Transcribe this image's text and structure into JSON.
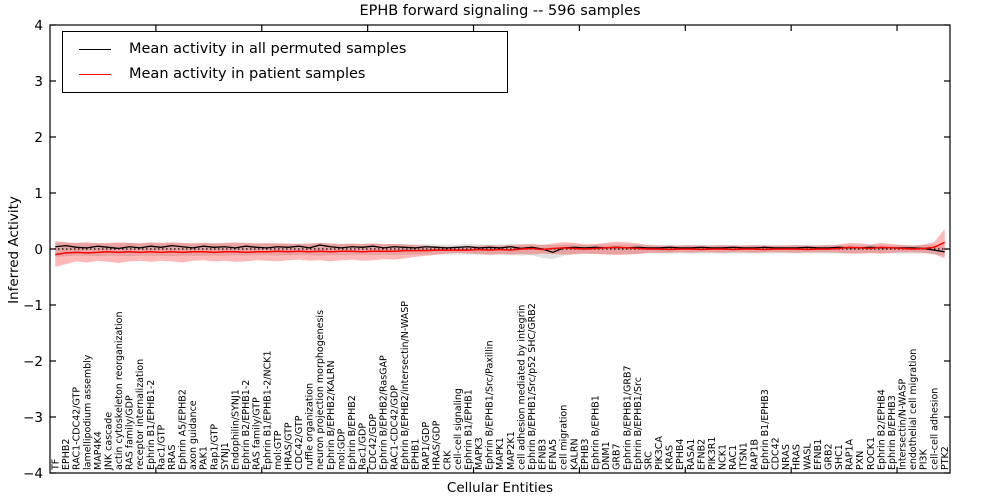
{
  "chart_data": {
    "type": "line",
    "title": "EPHB forward signaling -- 596 samples",
    "xlabel": "Cellular Entities",
    "ylabel": "Inferred Activity",
    "ylim": [
      -4,
      4
    ],
    "yticks": [
      -4,
      -3,
      -2,
      -1,
      0,
      1,
      2,
      3,
      4
    ],
    "grid": false,
    "legend_position": "upper left",
    "zero_line": {
      "y": 0,
      "style": "dotted",
      "color": "#000000"
    },
    "colors": {
      "permuted_line": "#000000",
      "permuted_band": "#c8c8c8",
      "patient_line": "#ff0000",
      "patient_band": "#ff0000",
      "background": "#ffffff"
    },
    "categories": [
      "TF",
      "EPHB2",
      "RAC1-CDC42/GTP",
      "lamellipodium assembly",
      "MAP4K4",
      "JNK cascade",
      "actin cytoskeleton reorganization",
      "RAS family/GDP",
      "receptor internalization",
      "Ephrin B1/EPHB1-2",
      "Rac1/GTP",
      "RRAS",
      "Ephrin A5/EPHB2",
      "axon guidance",
      "PAK1",
      "Rap1/GTP",
      "SYNJ1",
      "Endophilin/SYNJ1",
      "Ephrin B2/EPHB1-2",
      "RAS family/GTP",
      "Ephrin B1/EPHB1-2/NCK1",
      "mol:GTP",
      "HRAS/GTP",
      "CDC42/GTP",
      "ruffle organization",
      "neuron projection morphogenesis",
      "Ephrin B/EPHB2/KALRN",
      "mol:GDP",
      "Ephrin B/EPHB2",
      "Rac1/GDP",
      "CDC42/GDP",
      "Ephrin B/EPHB2/RasGAP",
      "RAC1-CDC42/GDP",
      "Ephrin B/EPHB2/intersectin/N-WASP",
      "EPHB1",
      "RAP1/GDP",
      "HRAS/GDP",
      "CRK",
      "cell-cell signaling",
      "Ephrin B1/EPHB1",
      "MAPK3",
      "Ephrin B/EPHB1/Src/Paxillin",
      "MAPK1",
      "MAP2K1",
      "cell adhesion mediated by integrin",
      "Ephrin B/EPHB1/Src/p52 SHC/GRB2",
      "EFNB3",
      "EFNA5",
      "cell migration",
      "KALRN",
      "EPHB3",
      "Ephrin B/EPHB1",
      "DNM1",
      "GRB7",
      "Ephrin B/EPHB1/GRB7",
      "Ephrin B/EPHB1/Src",
      "SRC",
      "PIK3CA",
      "KRAS",
      "EPHB4",
      "RASA1",
      "EFNB2",
      "PIK3R1",
      "NCK1",
      "RAC1",
      "ITSN1",
      "RAP1B",
      "Ephrin B1/EPHB3",
      "CDC42",
      "NRAS",
      "HRAS",
      "WASL",
      "EFNB1",
      "GRB2",
      "SHC1",
      "RAP1A",
      "PXN",
      "ROCK1",
      "Ephrin B2/EPHB4",
      "Ephrin B/EPHB3",
      "Intersectin/N-WASP",
      "endothelial cell migration",
      "PI3K",
      "cell-cell adhesion",
      "PTK2"
    ],
    "series": [
      {
        "name": "Mean activity in all permuted samples",
        "color": "#000000",
        "values": [
          0.04,
          0.06,
          0.03,
          0.02,
          0.05,
          0.03,
          0.01,
          0.04,
          0.02,
          0.05,
          0.03,
          0.06,
          0.04,
          0.02,
          0.05,
          0.03,
          0.04,
          0.02,
          0.05,
          0.03,
          0.02,
          0.04,
          0.03,
          0.05,
          0.02,
          0.07,
          0.04,
          0.02,
          0.04,
          0.03,
          0.05,
          0.02,
          0.04,
          0.03,
          0.02,
          0.04,
          0.03,
          0.02,
          0.03,
          0.04,
          0.02,
          0.03,
          0.02,
          0.04,
          0.01,
          0.03,
          0.0,
          -0.06,
          0.02,
          0.03,
          0.02,
          0.03,
          0.02,
          0.03,
          0.02,
          0.03,
          0.02,
          0.02,
          0.03,
          0.02,
          0.02,
          0.03,
          0.02,
          0.02,
          0.03,
          0.02,
          0.02,
          0.03,
          0.02,
          0.02,
          0.02,
          0.03,
          0.02,
          0.02,
          0.03,
          0.02,
          0.02,
          0.03,
          0.02,
          0.02,
          0.02,
          0.02,
          0.01,
          -0.02,
          -0.05
        ],
        "band_low": [
          -0.14,
          -0.13,
          -0.12,
          -0.12,
          -0.13,
          -0.12,
          -0.12,
          -0.13,
          -0.12,
          -0.12,
          -0.12,
          -0.13,
          -0.12,
          -0.12,
          -0.12,
          -0.12,
          -0.12,
          -0.11,
          -0.12,
          -0.11,
          -0.11,
          -0.12,
          -0.11,
          -0.11,
          -0.11,
          -0.12,
          -0.11,
          -0.11,
          -0.11,
          -0.1,
          -0.11,
          -0.1,
          -0.11,
          -0.1,
          -0.1,
          -0.1,
          -0.1,
          -0.1,
          -0.1,
          -0.1,
          -0.1,
          -0.11,
          -0.1,
          -0.1,
          -0.12,
          -0.11,
          -0.16,
          -0.18,
          -0.12,
          -0.1,
          -0.09,
          -0.09,
          -0.09,
          -0.09,
          -0.09,
          -0.09,
          -0.08,
          -0.08,
          -0.08,
          -0.08,
          -0.08,
          -0.08,
          -0.08,
          -0.08,
          -0.08,
          -0.08,
          -0.08,
          -0.08,
          -0.08,
          -0.08,
          -0.08,
          -0.08,
          -0.08,
          -0.08,
          -0.08,
          -0.08,
          -0.08,
          -0.08,
          -0.08,
          -0.08,
          -0.08,
          -0.08,
          -0.08,
          -0.1,
          -0.12
        ],
        "band_high": [
          0.12,
          0.11,
          0.11,
          0.1,
          0.11,
          0.1,
          0.1,
          0.11,
          0.1,
          0.11,
          0.1,
          0.11,
          0.1,
          0.1,
          0.11,
          0.1,
          0.1,
          0.1,
          0.1,
          0.1,
          0.09,
          0.1,
          0.09,
          0.1,
          0.09,
          0.11,
          0.09,
          0.09,
          0.09,
          0.09,
          0.1,
          0.09,
          0.09,
          0.09,
          0.08,
          0.09,
          0.08,
          0.08,
          0.08,
          0.09,
          0.08,
          0.08,
          0.08,
          0.09,
          0.08,
          0.08,
          0.08,
          0.07,
          0.08,
          0.08,
          0.08,
          0.08,
          0.08,
          0.08,
          0.08,
          0.08,
          0.07,
          0.07,
          0.07,
          0.07,
          0.07,
          0.07,
          0.07,
          0.07,
          0.07,
          0.07,
          0.07,
          0.07,
          0.07,
          0.07,
          0.07,
          0.07,
          0.07,
          0.07,
          0.07,
          0.07,
          0.07,
          0.07,
          0.07,
          0.07,
          0.07,
          0.07,
          0.07,
          0.08,
          0.08
        ]
      },
      {
        "name": "Mean activity in patient samples",
        "color": "#ff0000",
        "values": [
          -0.1,
          -0.07,
          -0.06,
          -0.07,
          -0.06,
          -0.05,
          -0.06,
          -0.05,
          -0.06,
          -0.05,
          -0.06,
          -0.05,
          -0.06,
          -0.05,
          -0.05,
          -0.06,
          -0.05,
          -0.05,
          -0.06,
          -0.05,
          -0.05,
          -0.04,
          -0.05,
          -0.04,
          -0.05,
          -0.04,
          -0.05,
          -0.04,
          -0.04,
          -0.05,
          -0.04,
          -0.04,
          -0.04,
          -0.03,
          -0.03,
          -0.03,
          -0.02,
          -0.02,
          -0.02,
          -0.02,
          -0.01,
          -0.02,
          -0.01,
          -0.02,
          0.0,
          0.01,
          -0.01,
          0.01,
          0.02,
          0.01,
          0.0,
          0.01,
          0.02,
          0.03,
          0.02,
          0.01,
          0.0,
          0.0,
          -0.01,
          0.0,
          0.0,
          -0.01,
          0.0,
          0.0,
          -0.01,
          0.0,
          0.0,
          -0.01,
          0.0,
          0.0,
          0.0,
          -0.01,
          0.0,
          0.0,
          0.01,
          0.03,
          0.02,
          0.01,
          0.03,
          0.02,
          0.01,
          0.0,
          0.01,
          0.03,
          0.12
        ],
        "band_low": [
          -0.32,
          -0.27,
          -0.22,
          -0.24,
          -0.21,
          -0.23,
          -0.25,
          -0.22,
          -0.21,
          -0.23,
          -0.21,
          -0.22,
          -0.24,
          -0.21,
          -0.2,
          -0.22,
          -0.21,
          -0.23,
          -0.22,
          -0.2,
          -0.21,
          -0.22,
          -0.2,
          -0.19,
          -0.21,
          -0.2,
          -0.22,
          -0.2,
          -0.19,
          -0.21,
          -0.2,
          -0.18,
          -0.19,
          -0.17,
          -0.14,
          -0.12,
          -0.1,
          -0.08,
          -0.07,
          -0.08,
          -0.09,
          -0.1,
          -0.09,
          -0.1,
          -0.09,
          -0.1,
          -0.08,
          -0.09,
          -0.1,
          -0.09,
          -0.08,
          -0.09,
          -0.1,
          -0.11,
          -0.1,
          -0.09,
          -0.07,
          -0.07,
          -0.07,
          -0.06,
          -0.07,
          -0.06,
          -0.06,
          -0.07,
          -0.06,
          -0.06,
          -0.07,
          -0.06,
          -0.06,
          -0.06,
          -0.07,
          -0.06,
          -0.06,
          -0.06,
          -0.07,
          -0.08,
          -0.08,
          -0.07,
          -0.08,
          -0.07,
          -0.06,
          -0.06,
          -0.07,
          -0.09,
          -0.17
        ],
        "band_high": [
          0.14,
          0.12,
          0.11,
          0.12,
          0.1,
          0.11,
          0.12,
          0.11,
          0.1,
          0.12,
          0.11,
          0.12,
          0.11,
          0.1,
          0.11,
          0.1,
          0.11,
          0.12,
          0.11,
          0.1,
          0.11,
          0.1,
          0.1,
          0.09,
          0.1,
          0.11,
          0.1,
          0.09,
          0.1,
          0.09,
          0.1,
          0.09,
          0.09,
          0.08,
          0.07,
          0.06,
          0.05,
          0.04,
          0.04,
          0.05,
          0.06,
          0.07,
          0.06,
          0.07,
          0.08,
          0.09,
          0.07,
          0.1,
          0.12,
          0.11,
          0.08,
          0.09,
          0.11,
          0.13,
          0.12,
          0.1,
          0.07,
          0.06,
          0.06,
          0.06,
          0.07,
          0.06,
          0.06,
          0.07,
          0.06,
          0.06,
          0.07,
          0.06,
          0.06,
          0.06,
          0.07,
          0.06,
          0.06,
          0.07,
          0.08,
          0.11,
          0.1,
          0.08,
          0.11,
          0.09,
          0.07,
          0.06,
          0.08,
          0.12,
          0.36
        ]
      }
    ]
  }
}
